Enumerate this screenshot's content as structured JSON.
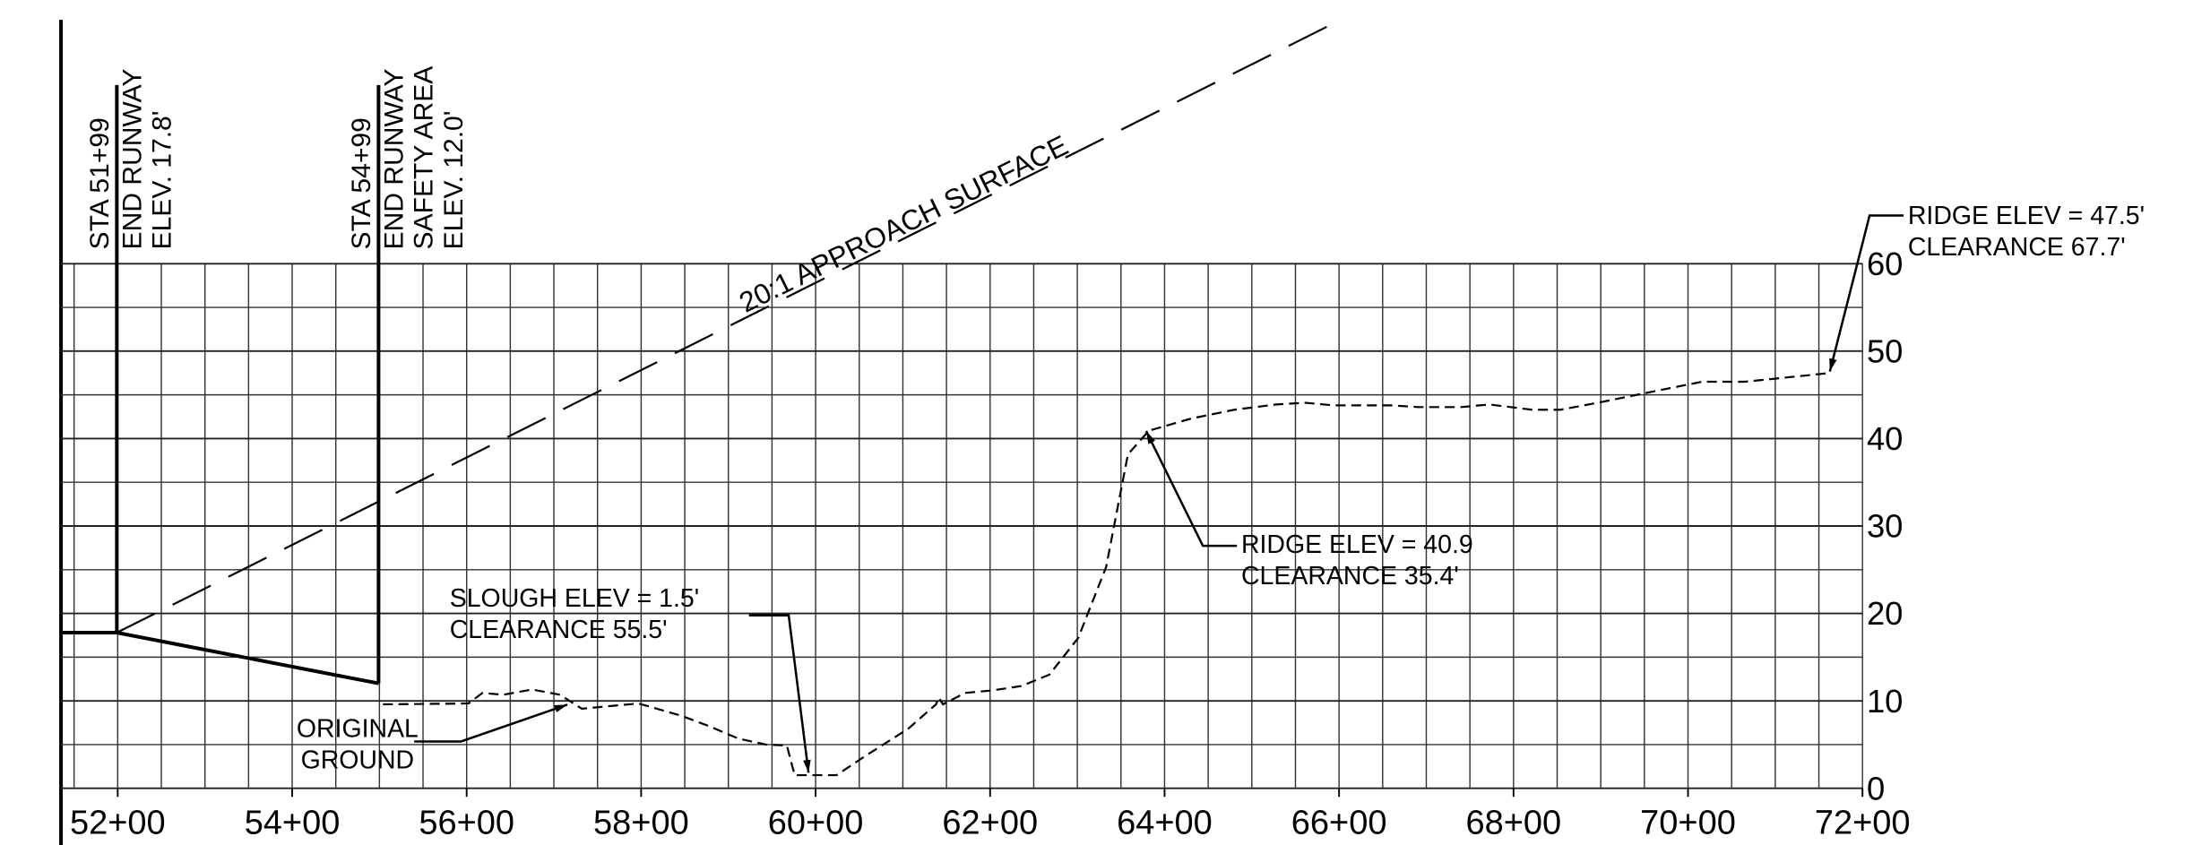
{
  "chart_data": {
    "type": "line",
    "xlim": [
      5135,
      7200
    ],
    "ylim": [
      0,
      60
    ],
    "xticks": [
      {
        "value": 5200,
        "label": "52+00"
      },
      {
        "value": 5400,
        "label": "54+00"
      },
      {
        "value": 5600,
        "label": "56+00"
      },
      {
        "value": 5800,
        "label": "58+00"
      },
      {
        "value": 6000,
        "label": "60+00"
      },
      {
        "value": 6200,
        "label": "62+00"
      },
      {
        "value": 6400,
        "label": "64+00"
      },
      {
        "value": 6600,
        "label": "66+00"
      },
      {
        "value": 6800,
        "label": "68+00"
      },
      {
        "value": 7000,
        "label": "70+00"
      },
      {
        "value": 7200,
        "label": "72+00"
      }
    ],
    "yticks": [
      0,
      10,
      20,
      30,
      40,
      50,
      60
    ],
    "grid": true,
    "xgrid": [
      5150,
      5200,
      5250,
      5300,
      5350,
      5400,
      5450,
      5500,
      5550,
      5600,
      5650,
      5700,
      5750,
      5800,
      5850,
      5900,
      5950,
      6000,
      6050,
      6100,
      6150,
      6200,
      6250,
      6300,
      6350,
      6400,
      6450,
      6500,
      6550,
      6600,
      6650,
      6700,
      6750,
      6800,
      6850,
      6900,
      6950,
      7000,
      7050,
      7100,
      7150,
      7200
    ],
    "ygrid_minor": [
      5,
      15,
      25,
      35,
      45,
      55
    ],
    "series": [
      {
        "color": "#000000",
        "style": "solid",
        "x": [
          5135,
          5199,
          5499
        ],
        "values": [
          17.8,
          17.8,
          12.0
        ]
      },
      {
        "color": "#000000",
        "style": "dashed",
        "x": [
          5504,
          5602,
          5618,
          5642,
          5675,
          5707,
          5732,
          5764,
          5797,
          5846,
          5878,
          5911,
          5943,
          5967,
          5976,
          6024,
          6057,
          6106,
          6138,
          6141,
          6146,
          6171,
          6203,
          6236,
          6268,
          6301,
          6333,
          6358,
          6382,
          6431,
          6480,
          6528,
          6561,
          6593,
          6659,
          6691,
          6740,
          6772,
          6821,
          6854,
          6902,
          6951,
          7016,
          7065,
          7114,
          7163
        ],
        "values": [
          9.6,
          9.7,
          10.9,
          10.7,
          11.3,
          10.7,
          9.1,
          9.4,
          9.7,
          8.3,
          7.1,
          5.7,
          5.0,
          4.9,
          1.5,
          1.5,
          3.7,
          6.8,
          9.6,
          10.4,
          9.6,
          10.9,
          11.2,
          11.7,
          13.0,
          17.2,
          25.3,
          38.2,
          40.9,
          42.3,
          43.3,
          43.9,
          44.1,
          43.8,
          43.8,
          43.6,
          43.6,
          43.9,
          43.3,
          43.3,
          44.2,
          45.2,
          46.5,
          46.5,
          47.0,
          47.5
        ]
      },
      {
        "color": "#000000",
        "style": "long-dashed",
        "x": [
          5199,
          6600
        ],
        "values": [
          17.8,
          87.8
        ]
      }
    ],
    "stations": [
      {
        "x": 5199,
        "lines": [
          "STA 51+99",
          "END RUNWAY",
          "ELEV. 17.8'"
        ]
      },
      {
        "x": 5499,
        "lines": [
          "STA 54+99",
          "END RUNWAY",
          "SAFETY AREA",
          "ELEV. 12.0'"
        ]
      }
    ],
    "annotations": [
      [
        "SLOUGH ELEV = 1.5'",
        "CLEARANCE 55.5'"
      ],
      [
        "ORIGINAL",
        "GROUND"
      ],
      [
        "RIDGE ELEV = 40.9",
        "CLEARANCE 35.4'"
      ],
      [
        "RIDGE ELEV = 47.5'",
        "CLEARANCE 67.7'"
      ]
    ],
    "approach_label": "20:1 APPROACH SURFACE"
  }
}
